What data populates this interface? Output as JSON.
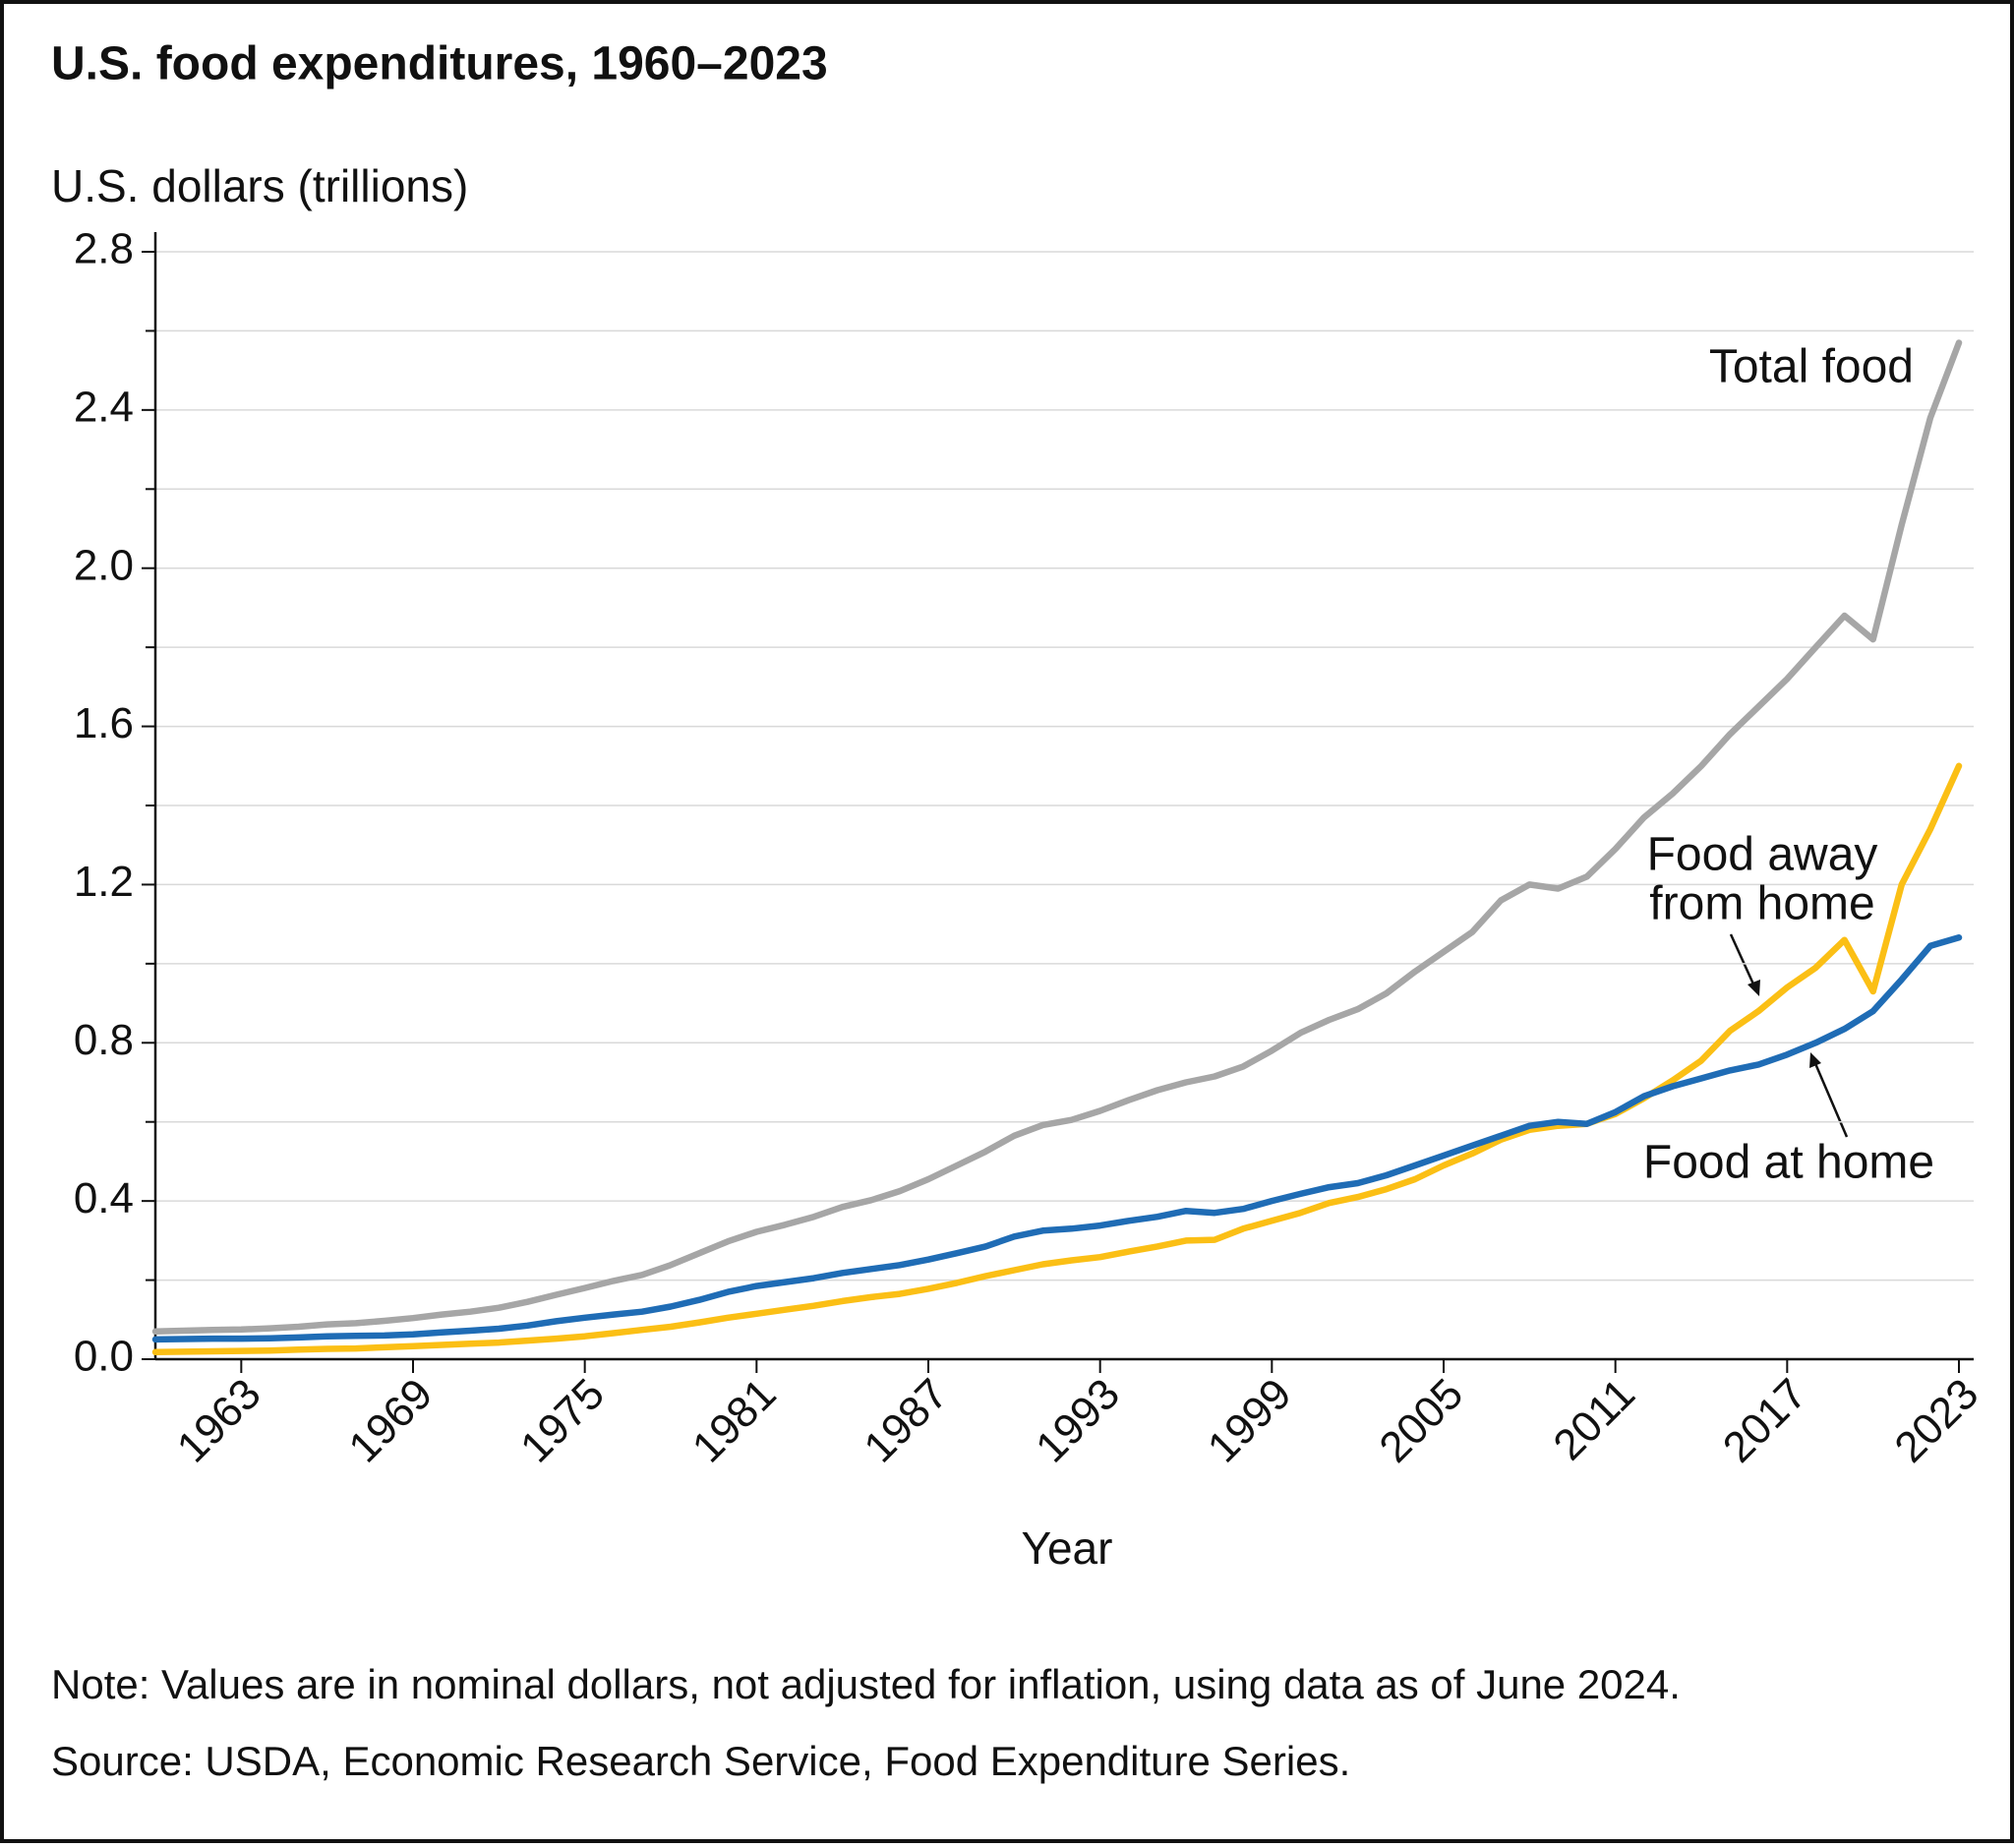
{
  "chart_data": {
    "type": "line",
    "title": "U.S. food expenditures, 1960–2023",
    "y_label": "U.S. dollars (trillions)",
    "x_label": "Year",
    "note": "Note: Values are in nominal dollars, not adjusted for inflation, using data as of June 2024.",
    "source": "Source: USDA, Economic Research Service, Food Expenditure Series.",
    "x": [
      1960,
      1961,
      1962,
      1963,
      1964,
      1965,
      1966,
      1967,
      1968,
      1969,
      1970,
      1971,
      1972,
      1973,
      1974,
      1975,
      1976,
      1977,
      1978,
      1979,
      1980,
      1981,
      1982,
      1983,
      1984,
      1985,
      1986,
      1987,
      1988,
      1989,
      1990,
      1991,
      1992,
      1993,
      1994,
      1995,
      1996,
      1997,
      1998,
      1999,
      2000,
      2001,
      2002,
      2003,
      2004,
      2005,
      2006,
      2007,
      2008,
      2009,
      2010,
      2011,
      2012,
      2013,
      2014,
      2015,
      2016,
      2017,
      2018,
      2019,
      2020,
      2021,
      2022,
      2023
    ],
    "series": [
      {
        "name": "Total food",
        "color": "#a6a6a6",
        "values": [
          0.07,
          0.072,
          0.074,
          0.075,
          0.078,
          0.082,
          0.088,
          0.091,
          0.097,
          0.104,
          0.113,
          0.12,
          0.13,
          0.145,
          0.163,
          0.18,
          0.198,
          0.213,
          0.238,
          0.268,
          0.298,
          0.322,
          0.34,
          0.36,
          0.385,
          0.402,
          0.425,
          0.455,
          0.49,
          0.525,
          0.565,
          0.592,
          0.605,
          0.628,
          0.655,
          0.68,
          0.7,
          0.715,
          0.74,
          0.78,
          0.825,
          0.858,
          0.885,
          0.925,
          0.98,
          1.03,
          1.08,
          1.16,
          1.2,
          1.19,
          1.22,
          1.29,
          1.37,
          1.43,
          1.5,
          1.58,
          1.65,
          1.72,
          1.8,
          1.88,
          1.82,
          2.11,
          2.38,
          2.57
        ]
      },
      {
        "name": "Food away from home",
        "color": "#fbbf15",
        "values": [
          0.018,
          0.019,
          0.02,
          0.021,
          0.022,
          0.024,
          0.026,
          0.027,
          0.03,
          0.033,
          0.036,
          0.039,
          0.042,
          0.047,
          0.052,
          0.058,
          0.066,
          0.074,
          0.082,
          0.093,
          0.105,
          0.115,
          0.125,
          0.135,
          0.147,
          0.157,
          0.165,
          0.178,
          0.193,
          0.21,
          0.225,
          0.24,
          0.25,
          0.258,
          0.272,
          0.285,
          0.3,
          0.302,
          0.33,
          0.35,
          0.37,
          0.395,
          0.41,
          0.43,
          0.455,
          0.49,
          0.52,
          0.555,
          0.58,
          0.59,
          0.595,
          0.62,
          0.66,
          0.705,
          0.755,
          0.83,
          0.88,
          0.94,
          0.99,
          1.06,
          0.93,
          1.2,
          1.34,
          1.5
        ]
      },
      {
        "name": "Food at home",
        "color": "#1f6cb5",
        "values": [
          0.05,
          0.051,
          0.052,
          0.052,
          0.053,
          0.055,
          0.058,
          0.059,
          0.06,
          0.063,
          0.068,
          0.072,
          0.077,
          0.085,
          0.096,
          0.105,
          0.113,
          0.12,
          0.133,
          0.15,
          0.17,
          0.185,
          0.195,
          0.205,
          0.218,
          0.228,
          0.238,
          0.252,
          0.268,
          0.285,
          0.31,
          0.325,
          0.33,
          0.338,
          0.35,
          0.36,
          0.375,
          0.37,
          0.38,
          0.4,
          0.418,
          0.435,
          0.445,
          0.465,
          0.49,
          0.515,
          0.54,
          0.565,
          0.59,
          0.6,
          0.595,
          0.625,
          0.665,
          0.69,
          0.71,
          0.73,
          0.745,
          0.77,
          0.8,
          0.835,
          0.88,
          0.96,
          1.045,
          1.066
        ]
      }
    ],
    "annotations": [
      {
        "series": 0,
        "lines": [
          "Total food"
        ]
      },
      {
        "series": 1,
        "lines": [
          "Food away",
          "from home"
        ]
      },
      {
        "series": 2,
        "lines": [
          "Food at home"
        ]
      }
    ],
    "xlim": [
      1960,
      2023
    ],
    "xticks": [
      1963,
      1969,
      1975,
      1981,
      1987,
      1993,
      1999,
      2005,
      2011,
      2017,
      2023
    ],
    "ylim": [
      0,
      2.8
    ],
    "yticks": [
      {
        "value": 0,
        "label": "0.0"
      },
      0.4,
      0.8,
      1.2,
      1.6,
      {
        "value": 2,
        "label": "2.0"
      },
      2.4,
      2.8
    ],
    "minor_yticks": [
      0.2,
      0.6,
      1,
      1.4,
      1.8,
      2.2,
      2.6
    ],
    "grid": true
  }
}
